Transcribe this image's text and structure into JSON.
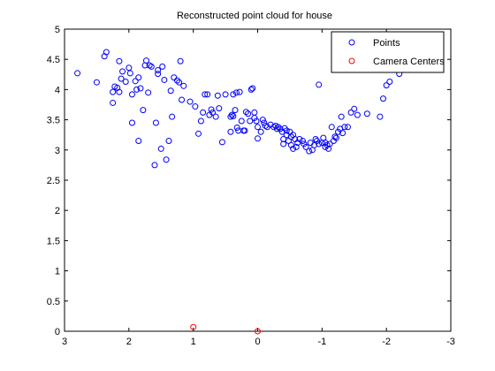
{
  "chart_data": {
    "type": "scatter",
    "title": "Reconstructed point cloud for house",
    "xlabel": "",
    "ylabel": "",
    "xlim": [
      3,
      -3
    ],
    "ylim": [
      0,
      5
    ],
    "x_reversed": true,
    "xticks": [
      3,
      2,
      1,
      0,
      -1,
      -2,
      -3
    ],
    "xtick_labels": [
      "3",
      "2",
      "1",
      "0",
      "-1",
      "-2",
      "-3"
    ],
    "yticks": [
      0,
      0.5,
      1,
      1.5,
      2,
      2.5,
      3,
      3.5,
      4,
      4.5,
      5
    ],
    "ytick_labels": [
      "0",
      "0.5",
      "1",
      "1.5",
      "2",
      "2.5",
      "3",
      "3.5",
      "4",
      "4.5",
      "5"
    ],
    "grid": false,
    "legend_position": "top-right",
    "colors": {
      "points": "#0000ff",
      "cameras": "#ff0000"
    },
    "series": [
      {
        "name": "Points",
        "color": "#0000ff",
        "marker": "circle-open",
        "points": [
          [
            2.8,
            4.27
          ],
          [
            2.5,
            4.12
          ],
          [
            2.38,
            4.55
          ],
          [
            2.35,
            4.62
          ],
          [
            2.25,
            3.96
          ],
          [
            2.25,
            3.78
          ],
          [
            2.22,
            4.05
          ],
          [
            2.18,
            4.03
          ],
          [
            2.15,
            3.96
          ],
          [
            2.15,
            4.47
          ],
          [
            2.12,
            4.18
          ],
          [
            2.1,
            4.3
          ],
          [
            2.05,
            4.13
          ],
          [
            2.0,
            4.36
          ],
          [
            1.98,
            4.27
          ],
          [
            1.95,
            3.45
          ],
          [
            1.95,
            3.92
          ],
          [
            1.9,
            4.14
          ],
          [
            1.88,
            4.0
          ],
          [
            1.85,
            3.15
          ],
          [
            1.85,
            4.2
          ],
          [
            1.82,
            4.02
          ],
          [
            1.78,
            3.66
          ],
          [
            1.75,
            4.4
          ],
          [
            1.73,
            4.48
          ],
          [
            1.7,
            3.95
          ],
          [
            1.68,
            4.4
          ],
          [
            1.65,
            4.38
          ],
          [
            1.6,
            2.75
          ],
          [
            1.58,
            3.45
          ],
          [
            1.55,
            4.32
          ],
          [
            1.55,
            4.26
          ],
          [
            1.5,
            3.02
          ],
          [
            1.48,
            4.38
          ],
          [
            1.45,
            4.16
          ],
          [
            1.42,
            2.84
          ],
          [
            1.38,
            3.15
          ],
          [
            1.35,
            3.98
          ],
          [
            1.33,
            3.55
          ],
          [
            1.3,
            4.2
          ],
          [
            1.25,
            4.15
          ],
          [
            1.22,
            4.12
          ],
          [
            1.2,
            4.47
          ],
          [
            1.18,
            3.83
          ],
          [
            1.15,
            4.06
          ],
          [
            1.05,
            3.8
          ],
          [
            0.92,
            3.27
          ],
          [
            0.88,
            3.48
          ],
          [
            0.85,
            3.62
          ],
          [
            0.82,
            3.92
          ],
          [
            0.78,
            3.92
          ],
          [
            0.75,
            3.58
          ],
          [
            0.72,
            3.67
          ],
          [
            0.7,
            3.62
          ],
          [
            0.65,
            3.55
          ],
          [
            0.62,
            3.9
          ],
          [
            0.6,
            3.69
          ],
          [
            0.55,
            3.13
          ],
          [
            0.5,
            3.92
          ],
          [
            0.42,
            3.55
          ],
          [
            0.42,
            3.3
          ],
          [
            0.4,
            3.58
          ],
          [
            0.38,
            3.56
          ],
          [
            0.38,
            3.92
          ],
          [
            0.35,
            3.66
          ],
          [
            0.33,
            3.95
          ],
          [
            0.32,
            3.37
          ],
          [
            0.3,
            3.32
          ],
          [
            0.28,
            3.96
          ],
          [
            0.25,
            3.48
          ],
          [
            0.22,
            3.32
          ],
          [
            0.2,
            3.32
          ],
          [
            0.18,
            3.63
          ],
          [
            0.15,
            3.6
          ],
          [
            0.12,
            3.48
          ],
          [
            0.1,
            4.0
          ],
          [
            0.08,
            4.02
          ],
          [
            0.05,
            3.62
          ],
          [
            0.05,
            3.53
          ],
          [
            0.02,
            3.48
          ],
          [
            0.0,
            3.38
          ],
          [
            0.0,
            3.19
          ],
          [
            -0.05,
            3.3
          ],
          [
            -0.08,
            3.5
          ],
          [
            -0.1,
            3.45
          ],
          [
            -0.12,
            3.4
          ],
          [
            -0.15,
            3.38
          ],
          [
            -0.2,
            3.42
          ],
          [
            -0.25,
            3.38
          ],
          [
            -0.28,
            3.4
          ],
          [
            -0.3,
            3.35
          ],
          [
            -0.32,
            3.38
          ],
          [
            -0.35,
            3.35
          ],
          [
            -0.38,
            3.3
          ],
          [
            -0.4,
            3.18
          ],
          [
            -0.4,
            3.1
          ],
          [
            -0.42,
            3.36
          ],
          [
            -0.45,
            3.25
          ],
          [
            -0.45,
            3.32
          ],
          [
            -0.48,
            3.15
          ],
          [
            -0.5,
            3.3
          ],
          [
            -0.52,
            3.08
          ],
          [
            -0.52,
            3.22
          ],
          [
            -0.55,
            3.25
          ],
          [
            -0.55,
            3.02
          ],
          [
            -0.58,
            3.18
          ],
          [
            -0.6,
            3.05
          ],
          [
            -0.62,
            3.12
          ],
          [
            -0.65,
            3.18
          ],
          [
            -0.7,
            3.15
          ],
          [
            -0.72,
            3.1
          ],
          [
            -0.75,
            3.05
          ],
          [
            -0.8,
            2.98
          ],
          [
            -0.82,
            3.12
          ],
          [
            -0.85,
            3.0
          ],
          [
            -0.88,
            3.08
          ],
          [
            -0.9,
            3.18
          ],
          [
            -0.92,
            3.15
          ],
          [
            -0.95,
            3.1
          ],
          [
            -0.95,
            4.08
          ],
          [
            -1.0,
            3.12
          ],
          [
            -1.02,
            3.2
          ],
          [
            -1.05,
            3.05
          ],
          [
            -1.05,
            3.12
          ],
          [
            -1.08,
            3.08
          ],
          [
            -1.1,
            3.02
          ],
          [
            -1.12,
            3.1
          ],
          [
            -1.15,
            3.38
          ],
          [
            -1.18,
            3.15
          ],
          [
            -1.2,
            3.22
          ],
          [
            -1.22,
            3.2
          ],
          [
            -1.25,
            3.3
          ],
          [
            -1.28,
            3.35
          ],
          [
            -1.3,
            3.55
          ],
          [
            -1.32,
            3.28
          ],
          [
            -1.35,
            3.38
          ],
          [
            -1.4,
            3.38
          ],
          [
            -1.45,
            3.62
          ],
          [
            -1.5,
            3.68
          ],
          [
            -1.55,
            3.58
          ],
          [
            -1.7,
            3.6
          ],
          [
            -1.9,
            3.55
          ],
          [
            -1.95,
            3.85
          ],
          [
            -2.0,
            4.07
          ],
          [
            -2.05,
            4.13
          ],
          [
            -2.2,
            4.26
          ],
          [
            0.97,
            3.72
          ]
        ]
      },
      {
        "name": "Camera Centers",
        "color": "#ff0000",
        "marker": "circle-open",
        "points": [
          [
            1.0,
            0.07
          ],
          [
            0.0,
            0.0
          ]
        ]
      }
    ]
  }
}
